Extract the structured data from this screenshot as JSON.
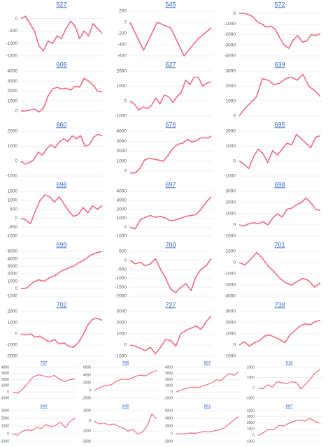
{
  "chart_data": [
    {
      "type": "line",
      "title": "527",
      "color": "#f06a85",
      "ylim": [
        -1500,
        300
      ],
      "yticks": [
        0,
        -500,
        -1000,
        -1500
      ],
      "grid": true,
      "values": [
        0,
        100,
        -200,
        -500,
        -1100,
        -1300,
        -900,
        -1000,
        -700,
        -800,
        -400,
        -100,
        -300,
        -800,
        -500,
        -700,
        -200,
        -400,
        -600
      ]
    },
    {
      "type": "line",
      "title": "545",
      "color": "#f06a85",
      "ylim": [
        -600,
        200
      ],
      "yticks": [
        200,
        0,
        -200,
        -400,
        -600
      ],
      "grid": true,
      "values": [
        0,
        -500,
        0,
        -100,
        -600,
        -300,
        -100
      ]
    },
    {
      "type": "line",
      "title": "572",
      "color": "#f06a85",
      "ylim": [
        -4000,
        200
      ],
      "yticks": [
        0,
        -1000,
        -2000,
        -3000,
        -4000
      ],
      "grid": true,
      "values": [
        0,
        0,
        -100,
        -300,
        -800,
        -1000,
        -1300,
        -1200,
        -1500,
        -2300,
        -3000,
        -3300,
        -2500,
        -2100,
        -2700,
        -2600,
        -2000,
        -2100,
        -1900
      ]
    },
    {
      "type": "line",
      "title": "606",
      "color": "#f06a85",
      "ylim": [
        -500,
        4000
      ],
      "yticks": [
        4000,
        3000,
        2000,
        1000,
        0
      ],
      "grid": true,
      "values": [
        0,
        0,
        100,
        200,
        -100,
        300,
        1500,
        2200,
        2400,
        2200,
        2300,
        2100,
        2500,
        2400,
        3300,
        3000,
        2600,
        2000,
        1900
      ]
    },
    {
      "type": "line",
      "title": "627",
      "color": "#f06a85",
      "ylim": [
        -1000,
        2000
      ],
      "yticks": [
        2000,
        1000,
        0,
        -1000
      ],
      "grid": true,
      "values": [
        0,
        -200,
        -600,
        -400,
        -500,
        -300,
        200,
        -200,
        400,
        300,
        -100,
        300,
        600,
        1400,
        1100,
        1600,
        1600,
        1000,
        1200,
        1300
      ]
    },
    {
      "type": "line",
      "title": "639",
      "color": "#f06a85",
      "ylim": [
        0,
        3000
      ],
      "yticks": [
        3000,
        2000,
        1000,
        0
      ],
      "grid": true,
      "values": [
        0,
        500,
        900,
        1300,
        2500,
        2400,
        2100,
        2200,
        2500,
        2600,
        2400,
        2800,
        2000,
        1700,
        1300
      ]
    },
    {
      "type": "line",
      "title": "660",
      "color": "#f06a85",
      "ylim": [
        -1000,
        2000
      ],
      "yticks": [
        2000,
        1000,
        0,
        -1000
      ],
      "grid": true,
      "values": [
        0,
        -200,
        -100,
        100,
        600,
        400,
        800,
        1100,
        900,
        1300,
        1500,
        1300,
        1700,
        1500,
        1700,
        1000,
        1100,
        1600,
        1800,
        1700
      ]
    },
    {
      "type": "line",
      "title": "676",
      "color": "#f06a85",
      "ylim": [
        -500,
        4000
      ],
      "yticks": [
        4000,
        3000,
        2000,
        1000,
        0
      ],
      "grid": true,
      "values": [
        -200,
        -200,
        200,
        1100,
        1300,
        1200,
        1100,
        1000,
        1600,
        2300,
        2700,
        2800,
        3200,
        2900,
        3100,
        3400,
        3300,
        3500
      ]
    },
    {
      "type": "line",
      "title": "695",
      "color": "#f06a85",
      "ylim": [
        -1000,
        2000
      ],
      "yticks": [
        2000,
        1000,
        0,
        -1000
      ],
      "grid": true,
      "values": [
        0,
        -200,
        -500,
        300,
        800,
        500,
        -100,
        700,
        400,
        800,
        1200,
        1100,
        1800,
        1500,
        1200,
        900,
        1600,
        1700
      ]
    },
    {
      "type": "line",
      "title": "696",
      "color": "#f06a85",
      "ylim": [
        -1000,
        1500
      ],
      "yticks": [
        1500,
        1000,
        500,
        0,
        -500,
        -1000
      ],
      "grid": true,
      "values": [
        0,
        -100,
        -300,
        400,
        1000,
        1300,
        1200,
        900,
        1200,
        800,
        400,
        100,
        200,
        600,
        300,
        700,
        500,
        700
      ]
    },
    {
      "type": "line",
      "title": "697",
      "color": "#f06a85",
      "ylim": [
        -1000,
        4000
      ],
      "yticks": [
        4000,
        3000,
        2000,
        1000,
        0,
        -1000
      ],
      "grid": true,
      "values": [
        0,
        -200,
        800,
        1100,
        1300,
        1100,
        1200,
        1000,
        700,
        800,
        1000,
        1200,
        1300,
        1400,
        2000,
        2800,
        3400
      ]
    },
    {
      "type": "line",
      "title": "698",
      "color": "#f06a85",
      "ylim": [
        -1000,
        3000
      ],
      "yticks": [
        3000,
        2000,
        1000,
        0,
        -1000
      ],
      "grid": true,
      "values": [
        0,
        -100,
        100,
        200,
        100,
        300,
        0,
        600,
        1000,
        700,
        1400,
        1500,
        1800,
        2000,
        2400,
        2000,
        1400,
        1300
      ]
    },
    {
      "type": "line",
      "title": "699",
      "color": "#f06a85",
      "ylim": [
        -1000,
        5000
      ],
      "yticks": [
        5000,
        4000,
        3000,
        2000,
        1000,
        0,
        -1000
      ],
      "grid": true,
      "values": [
        0,
        100,
        800,
        1200,
        1000,
        1500,
        1800,
        2400,
        2700,
        3000,
        3500,
        3900,
        4500,
        4800,
        5000
      ]
    },
    {
      "type": "line",
      "title": "700",
      "color": "#f06a85",
      "ylim": [
        -2000,
        500
      ],
      "yticks": [
        500,
        0,
        -500,
        -1000,
        -1500,
        -2000
      ],
      "grid": true,
      "values": [
        0,
        -200,
        -100,
        -300,
        -200,
        100,
        -500,
        -1000,
        -1600,
        -1800,
        -1500,
        -1300,
        -1700,
        -900,
        -500,
        -300,
        100
      ]
    },
    {
      "type": "line",
      "title": "701",
      "color": "#f06a85",
      "ylim": [
        -3000,
        1000
      ],
      "yticks": [
        1000,
        0,
        -1000,
        -2000,
        -3000
      ],
      "grid": true,
      "values": [
        0,
        -200,
        300,
        900,
        400,
        -300,
        -800,
        -1400,
        -1800,
        -2000,
        -1700,
        -1400,
        -1600,
        -2200,
        -1800
      ]
    },
    {
      "type": "line",
      "title": "702",
      "color": "#f06a85",
      "ylim": [
        -2000,
        2000
      ],
      "yticks": [
        2000,
        1000,
        0,
        -1000,
        -2000
      ],
      "grid": true,
      "values": [
        0,
        -100,
        0,
        -300,
        -200,
        -500,
        -700,
        -500,
        -900,
        -800,
        -1100,
        -1200,
        -800,
        -100,
        800,
        1300,
        1400,
        1200
      ]
    },
    {
      "type": "line",
      "title": "727",
      "color": "#f06a85",
      "ylim": [
        -1000,
        3000
      ],
      "yticks": [
        3000,
        2000,
        1000,
        0,
        -1000
      ],
      "grid": true,
      "values": [
        0,
        -100,
        -300,
        -500,
        -200,
        -800,
        -200,
        500,
        400,
        -100,
        1000,
        1300,
        1500,
        1700,
        1400,
        2100,
        2600
      ]
    },
    {
      "type": "line",
      "title": "738",
      "color": "#f06a85",
      "ylim": [
        -1000,
        3000
      ],
      "yticks": [
        3000,
        2000,
        1000,
        0,
        -1000
      ],
      "grid": true,
      "values": [
        0,
        300,
        -100,
        200,
        400,
        800,
        900,
        700,
        500,
        200,
        900,
        1300,
        1700,
        1900,
        1800,
        2100,
        2200
      ]
    },
    {
      "type": "line",
      "title": "757",
      "color": "#f06a85",
      "ylim": [
        -1000,
        4000
      ],
      "yticks": [
        4000,
        3000,
        2000,
        1000,
        0,
        -1000
      ],
      "grid": true,
      "values": [
        0,
        -200,
        500,
        1500,
        2500,
        2800,
        2600,
        2400,
        2700,
        2100,
        1700,
        2000,
        2100
      ]
    },
    {
      "type": "line",
      "title": "786",
      "color": "#f06a85",
      "ylim": [
        -2000,
        6000
      ],
      "yticks": [
        6000,
        4000,
        2000,
        0,
        -2000
      ],
      "grid": true,
      "values": [
        0,
        800,
        1300,
        1500,
        2500,
        3000,
        2800,
        3500,
        4000,
        3800,
        4600,
        5200
      ]
    },
    {
      "type": "line",
      "title": "807",
      "color": "#f06a85",
      "ylim": [
        -1000,
        4000
      ],
      "yticks": [
        4000,
        3000,
        2000,
        1000,
        0,
        -1000
      ],
      "grid": true,
      "values": [
        0,
        300,
        500,
        700,
        800,
        700,
        1000,
        1200,
        1500,
        2000,
        1800,
        2500,
        3000,
        2700,
        3200
      ]
    },
    {
      "type": "line",
      "title": "818",
      "color": "#f06a85",
      "ylim": [
        -1000,
        2000
      ],
      "yticks": [
        2000,
        1000,
        0,
        -1000
      ],
      "grid": true,
      "values": [
        0,
        -100,
        300,
        100,
        600,
        500,
        400,
        600,
        500,
        -100,
        400,
        900,
        1500,
        1800
      ]
    },
    {
      "type": "line",
      "title": "840",
      "color": "#f06a85",
      "ylim": [
        -1000,
        3000
      ],
      "yticks": [
        3000,
        2000,
        1000,
        0,
        -1000
      ],
      "grid": true,
      "values": [
        0,
        -200,
        300,
        500,
        400,
        800,
        700,
        1200,
        900,
        1100,
        1500,
        800,
        1600,
        2000
      ]
    },
    {
      "type": "line",
      "title": "845",
      "color": "#f06a85",
      "ylim": [
        -2000,
        1000
      ],
      "yticks": [
        1000,
        0,
        -1000,
        -2000
      ],
      "grid": true,
      "values": [
        0,
        -300,
        -200,
        -400,
        -300,
        -500,
        -700,
        -1000,
        -800,
        -1300,
        -1100,
        -500,
        700,
        200
      ]
    },
    {
      "type": "line",
      "title": "861",
      "color": "#f06a85",
      "ylim": [
        -2000,
        6000
      ],
      "yticks": [
        6000,
        4000,
        2000,
        0,
        -2000
      ],
      "grid": true,
      "values": [
        0,
        -100,
        0,
        200,
        100,
        400,
        600,
        500,
        800,
        1000,
        1500,
        2500,
        3500,
        4500
      ]
    },
    {
      "type": "line",
      "title": "887",
      "color": "#f06a85",
      "ylim": [
        -1000,
        4000
      ],
      "yticks": [
        4000,
        3000,
        2000,
        1000,
        0,
        -1000
      ],
      "grid": true,
      "values": [
        0,
        400,
        1000,
        900,
        1600,
        1500,
        2000,
        2300,
        2500,
        2300,
        2800,
        2200,
        2000
      ]
    }
  ]
}
